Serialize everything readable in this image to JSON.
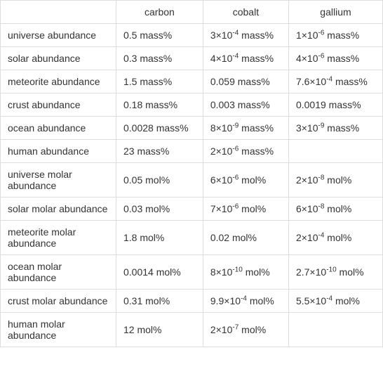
{
  "columns": [
    "",
    "carbon",
    "cobalt",
    "gallium"
  ],
  "rows": [
    {
      "label": "universe abundance",
      "carbon": {
        "text": "0.5 mass%"
      },
      "cobalt": {
        "base": "3×10",
        "exp": "-4",
        "unit": " mass%"
      },
      "gallium": {
        "base": "1×10",
        "exp": "-6",
        "unit": " mass%"
      }
    },
    {
      "label": "solar abundance",
      "carbon": {
        "text": "0.3 mass%"
      },
      "cobalt": {
        "base": "4×10",
        "exp": "-4",
        "unit": " mass%"
      },
      "gallium": {
        "base": "4×10",
        "exp": "-6",
        "unit": " mass%"
      }
    },
    {
      "label": "meteorite abundance",
      "carbon": {
        "text": "1.5 mass%"
      },
      "cobalt": {
        "text": "0.059 mass%"
      },
      "gallium": {
        "base": "7.6×10",
        "exp": "-4",
        "unit": " mass%"
      }
    },
    {
      "label": "crust abundance",
      "carbon": {
        "text": "0.18 mass%"
      },
      "cobalt": {
        "text": "0.003 mass%"
      },
      "gallium": {
        "text": "0.0019 mass%"
      }
    },
    {
      "label": "ocean abundance",
      "carbon": {
        "text": "0.0028 mass%"
      },
      "cobalt": {
        "base": "8×10",
        "exp": "-9",
        "unit": " mass%"
      },
      "gallium": {
        "base": "3×10",
        "exp": "-9",
        "unit": " mass%"
      }
    },
    {
      "label": "human abundance",
      "carbon": {
        "text": "23 mass%"
      },
      "cobalt": {
        "base": "2×10",
        "exp": "-6",
        "unit": " mass%"
      },
      "gallium": {
        "text": ""
      }
    },
    {
      "label": "universe molar abundance",
      "multiline": true,
      "carbon": {
        "text": "0.05 mol%"
      },
      "cobalt": {
        "base": "6×10",
        "exp": "-6",
        "unit": " mol%"
      },
      "gallium": {
        "base": "2×10",
        "exp": "-8",
        "unit": " mol%"
      }
    },
    {
      "label": "solar molar abundance",
      "multiline": true,
      "carbon": {
        "text": "0.03 mol%"
      },
      "cobalt": {
        "base": "7×10",
        "exp": "-6",
        "unit": " mol%"
      },
      "gallium": {
        "base": "6×10",
        "exp": "-8",
        "unit": " mol%"
      }
    },
    {
      "label": "meteorite molar abundance",
      "multiline": true,
      "carbon": {
        "text": "1.8 mol%"
      },
      "cobalt": {
        "text": "0.02 mol%"
      },
      "gallium": {
        "base": "2×10",
        "exp": "-4",
        "unit": " mol%"
      }
    },
    {
      "label": "ocean molar abundance",
      "multiline": true,
      "carbon": {
        "text": "0.0014 mol%"
      },
      "cobalt": {
        "base": "8×10",
        "exp": "-10",
        "unit": " mol%"
      },
      "gallium": {
        "base": "2.7×10",
        "exp": "-10",
        "unit": " mol%"
      }
    },
    {
      "label": "crust molar abundance",
      "multiline": true,
      "carbon": {
        "text": "0.31 mol%"
      },
      "cobalt": {
        "base": "9.9×10",
        "exp": "-4",
        "unit": " mol%"
      },
      "gallium": {
        "base": "5.5×10",
        "exp": "-4",
        "unit": " mol%"
      }
    },
    {
      "label": "human molar abundance",
      "multiline": true,
      "carbon": {
        "text": "12 mol%"
      },
      "cobalt": {
        "base": "2×10",
        "exp": "-7",
        "unit": " mol%"
      },
      "gallium": {
        "text": ""
      }
    }
  ]
}
